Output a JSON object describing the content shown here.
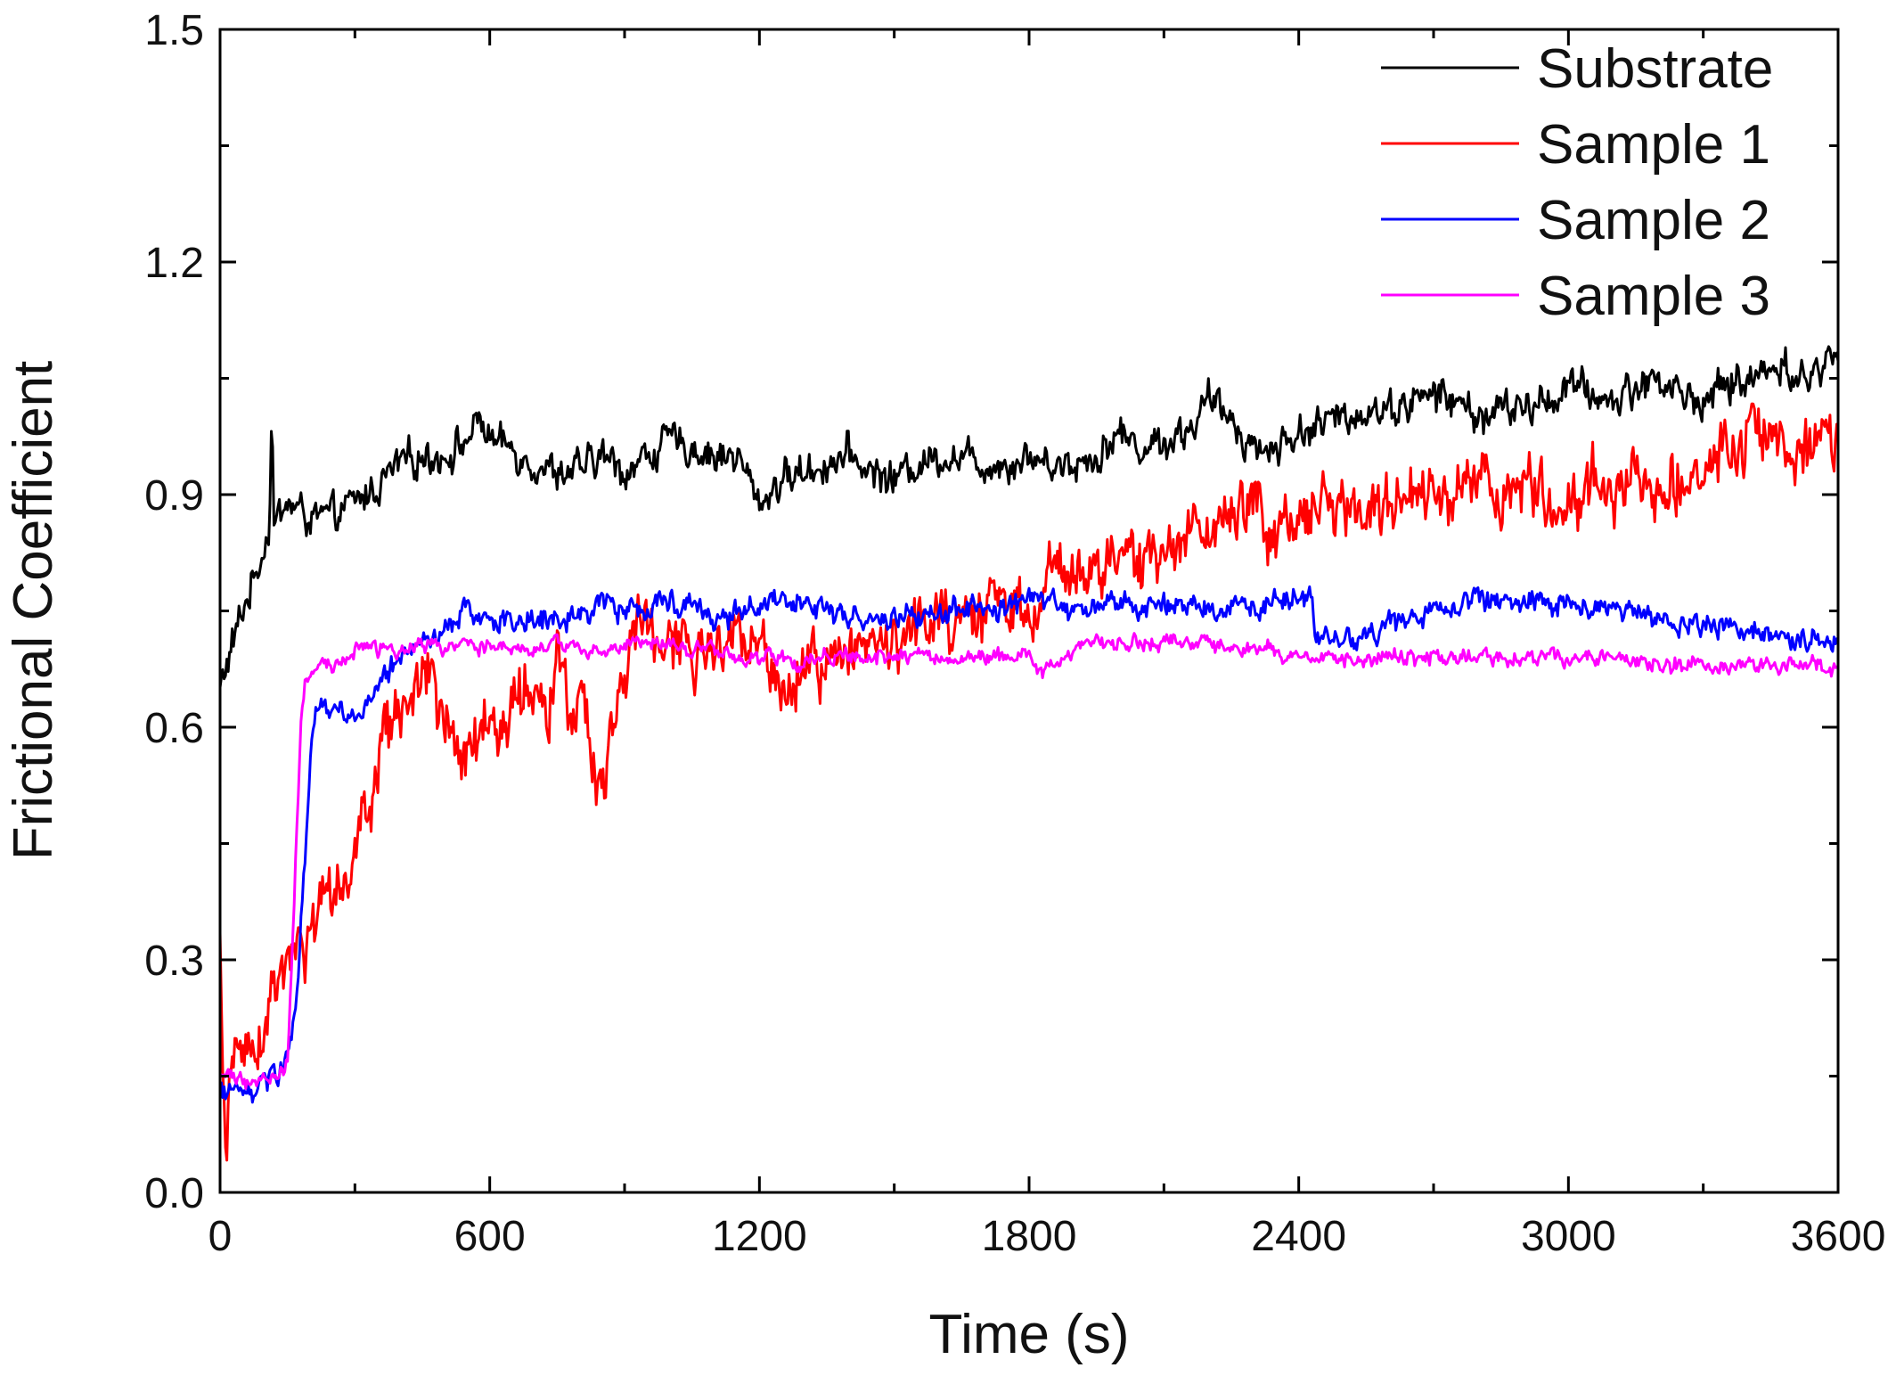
{
  "chart_data": {
    "type": "line",
    "title": "",
    "xlabel": "Time (s)",
    "ylabel": "Frictional Coefficient",
    "xlim": [
      0,
      3600
    ],
    "ylim": [
      0.0,
      1.5
    ],
    "xticks": [
      0,
      600,
      1200,
      1800,
      2400,
      3000,
      3600
    ],
    "xtick_labels": [
      "0",
      "600",
      "1200",
      "1800",
      "2400",
      "3000",
      "3600"
    ],
    "yticks": [
      0.0,
      0.3,
      0.6,
      0.9,
      1.2,
      1.5
    ],
    "ytick_labels": [
      "0.0",
      "0.3",
      "0.6",
      "0.9",
      "1.2",
      "1.5"
    ],
    "legend_position": "top-right",
    "grid": false,
    "series": [
      {
        "name": "Substrate",
        "color": "#000000",
        "noise": 0.016,
        "x": [
          0,
          20,
          50,
          80,
          100,
          110,
          115,
          120,
          150,
          200,
          250,
          300,
          350,
          400,
          450,
          500,
          550,
          580,
          600,
          650,
          700,
          750,
          800,
          850,
          900,
          950,
          1000,
          1050,
          1100,
          1150,
          1200,
          1250,
          1300,
          1350,
          1400,
          1450,
          1500,
          1550,
          1600,
          1650,
          1700,
          1750,
          1800,
          1850,
          1900,
          1950,
          2000,
          2050,
          2100,
          2150,
          2200,
          2250,
          2300,
          2350,
          2400,
          2450,
          2500,
          2550,
          2600,
          2650,
          2700,
          2750,
          2800,
          2850,
          2900,
          2950,
          3000,
          3050,
          3100,
          3150,
          3200,
          3250,
          3300,
          3350,
          3400,
          3450,
          3480,
          3500,
          3550,
          3600
        ],
        "y": [
          0.65,
          0.69,
          0.75,
          0.8,
          0.84,
          0.86,
          1.03,
          0.86,
          0.89,
          0.87,
          0.87,
          0.89,
          0.91,
          0.94,
          0.95,
          0.95,
          0.97,
          1.0,
          0.97,
          0.96,
          0.94,
          0.93,
          0.93,
          0.95,
          0.93,
          0.95,
          0.97,
          0.96,
          0.95,
          0.95,
          0.89,
          0.92,
          0.93,
          0.94,
          0.95,
          0.93,
          0.92,
          0.94,
          0.95,
          0.95,
          0.94,
          0.94,
          0.95,
          0.94,
          0.94,
          0.95,
          0.98,
          0.96,
          0.97,
          0.98,
          1.02,
          1.0,
          0.96,
          0.96,
          0.98,
          0.99,
          1.0,
          1.01,
          1.01,
          1.02,
          1.03,
          1.02,
          1.0,
          1.01,
          1.01,
          1.02,
          1.04,
          1.03,
          1.02,
          1.04,
          1.05,
          1.03,
          1.02,
          1.04,
          1.05,
          1.06,
          1.08,
          1.04,
          1.06,
          1.08
        ]
      },
      {
        "name": "Sample 1",
        "color": "#ff0000",
        "noise": 0.028,
        "x": [
          0,
          5,
          10,
          15,
          20,
          30,
          50,
          80,
          100,
          120,
          150,
          180,
          200,
          230,
          250,
          280,
          300,
          330,
          350,
          380,
          400,
          430,
          450,
          470,
          500,
          530,
          560,
          600,
          620,
          650,
          680,
          700,
          730,
          750,
          780,
          800,
          830,
          850,
          880,
          900,
          930,
          950,
          980,
          1000,
          1050,
          1100,
          1150,
          1200,
          1250,
          1300,
          1350,
          1400,
          1450,
          1500,
          1550,
          1600,
          1650,
          1700,
          1720,
          1750,
          1800,
          1850,
          1900,
          1950,
          2000,
          2050,
          2100,
          2150,
          2200,
          2250,
          2300,
          2350,
          2400,
          2450,
          2500,
          2550,
          2600,
          2650,
          2700,
          2750,
          2800,
          2850,
          2900,
          2950,
          3000,
          3050,
          3100,
          3150,
          3200,
          3250,
          3300,
          3350,
          3400,
          3450,
          3500,
          3550,
          3600
        ],
        "y": [
          0.32,
          0.2,
          0.05,
          0.02,
          0.15,
          0.17,
          0.19,
          0.2,
          0.22,
          0.25,
          0.29,
          0.31,
          0.32,
          0.35,
          0.38,
          0.42,
          0.45,
          0.5,
          0.55,
          0.6,
          0.63,
          0.62,
          0.66,
          0.65,
          0.6,
          0.57,
          0.58,
          0.62,
          0.57,
          0.63,
          0.66,
          0.65,
          0.6,
          0.68,
          0.6,
          0.66,
          0.55,
          0.53,
          0.6,
          0.68,
          0.73,
          0.72,
          0.7,
          0.72,
          0.7,
          0.69,
          0.71,
          0.69,
          0.66,
          0.69,
          0.68,
          0.7,
          0.71,
          0.71,
          0.72,
          0.74,
          0.73,
          0.73,
          0.78,
          0.76,
          0.75,
          0.79,
          0.8,
          0.8,
          0.82,
          0.81,
          0.82,
          0.84,
          0.86,
          0.87,
          0.88,
          0.86,
          0.88,
          0.87,
          0.89,
          0.88,
          0.89,
          0.91,
          0.9,
          0.89,
          0.91,
          0.9,
          0.91,
          0.9,
          0.89,
          0.91,
          0.9,
          0.91,
          0.92,
          0.92,
          0.92,
          0.97,
          0.97,
          0.96,
          0.96,
          0.97,
          0.97
        ]
      },
      {
        "name": "Sample 2",
        "color": "#0000ff",
        "noise": 0.011,
        "x": [
          0,
          30,
          60,
          100,
          130,
          150,
          170,
          180,
          190,
          200,
          210,
          220,
          230,
          250,
          280,
          300,
          330,
          350,
          380,
          400,
          450,
          500,
          550,
          600,
          650,
          700,
          750,
          800,
          850,
          900,
          950,
          1000,
          1050,
          1100,
          1150,
          1200,
          1250,
          1300,
          1350,
          1400,
          1450,
          1500,
          1550,
          1600,
          1650,
          1700,
          1750,
          1800,
          1850,
          1900,
          1950,
          2000,
          2050,
          2100,
          2150,
          2200,
          2250,
          2300,
          2350,
          2400,
          2430,
          2440,
          2450,
          2500,
          2550,
          2600,
          2650,
          2700,
          2750,
          2800,
          2850,
          2900,
          2950,
          3000,
          3050,
          3100,
          3150,
          3200,
          3250,
          3300,
          3350,
          3400,
          3450,
          3500,
          3550,
          3600
        ],
        "y": [
          0.13,
          0.13,
          0.13,
          0.14,
          0.15,
          0.17,
          0.25,
          0.35,
          0.45,
          0.55,
          0.6,
          0.62,
          0.63,
          0.62,
          0.61,
          0.61,
          0.63,
          0.65,
          0.68,
          0.69,
          0.71,
          0.73,
          0.75,
          0.74,
          0.74,
          0.74,
          0.74,
          0.75,
          0.76,
          0.75,
          0.76,
          0.76,
          0.76,
          0.74,
          0.75,
          0.76,
          0.76,
          0.75,
          0.75,
          0.74,
          0.74,
          0.74,
          0.74,
          0.75,
          0.75,
          0.76,
          0.75,
          0.76,
          0.76,
          0.75,
          0.76,
          0.76,
          0.75,
          0.76,
          0.76,
          0.76,
          0.76,
          0.75,
          0.76,
          0.77,
          0.77,
          0.7,
          0.71,
          0.72,
          0.72,
          0.73,
          0.74,
          0.75,
          0.75,
          0.76,
          0.76,
          0.76,
          0.76,
          0.76,
          0.76,
          0.75,
          0.75,
          0.74,
          0.74,
          0.74,
          0.73,
          0.72,
          0.72,
          0.72,
          0.71,
          0.72
        ]
      },
      {
        "name": "Sample 3",
        "color": "#ff00ff",
        "noise": 0.007,
        "x": [
          0,
          30,
          60,
          100,
          130,
          150,
          160,
          170,
          180,
          190,
          200,
          220,
          250,
          300,
          330,
          350,
          400,
          450,
          500,
          550,
          600,
          650,
          700,
          750,
          800,
          850,
          900,
          950,
          1000,
          1050,
          1100,
          1150,
          1200,
          1250,
          1300,
          1350,
          1400,
          1450,
          1500,
          1550,
          1600,
          1650,
          1700,
          1750,
          1800,
          1820,
          1850,
          1900,
          1950,
          2000,
          2050,
          2100,
          2150,
          2200,
          2250,
          2300,
          2350,
          2400,
          2450,
          2500,
          2550,
          2600,
          2650,
          2700,
          2750,
          2800,
          2850,
          2900,
          2950,
          3000,
          3050,
          3100,
          3150,
          3200,
          3250,
          3300,
          3350,
          3400,
          3450,
          3500,
          3550,
          3600
        ],
        "y": [
          0.15,
          0.15,
          0.14,
          0.15,
          0.15,
          0.17,
          0.3,
          0.45,
          0.6,
          0.66,
          0.67,
          0.68,
          0.68,
          0.7,
          0.71,
          0.7,
          0.7,
          0.71,
          0.7,
          0.71,
          0.7,
          0.7,
          0.7,
          0.71,
          0.7,
          0.7,
          0.71,
          0.71,
          0.71,
          0.7,
          0.7,
          0.69,
          0.69,
          0.69,
          0.68,
          0.69,
          0.69,
          0.69,
          0.69,
          0.69,
          0.69,
          0.69,
          0.69,
          0.69,
          0.69,
          0.67,
          0.68,
          0.7,
          0.71,
          0.71,
          0.71,
          0.71,
          0.71,
          0.71,
          0.7,
          0.7,
          0.7,
          0.69,
          0.69,
          0.69,
          0.69,
          0.69,
          0.69,
          0.69,
          0.69,
          0.69,
          0.69,
          0.69,
          0.69,
          0.69,
          0.69,
          0.69,
          0.69,
          0.68,
          0.68,
          0.68,
          0.68,
          0.68,
          0.68,
          0.68,
          0.68,
          0.67
        ]
      }
    ]
  }
}
